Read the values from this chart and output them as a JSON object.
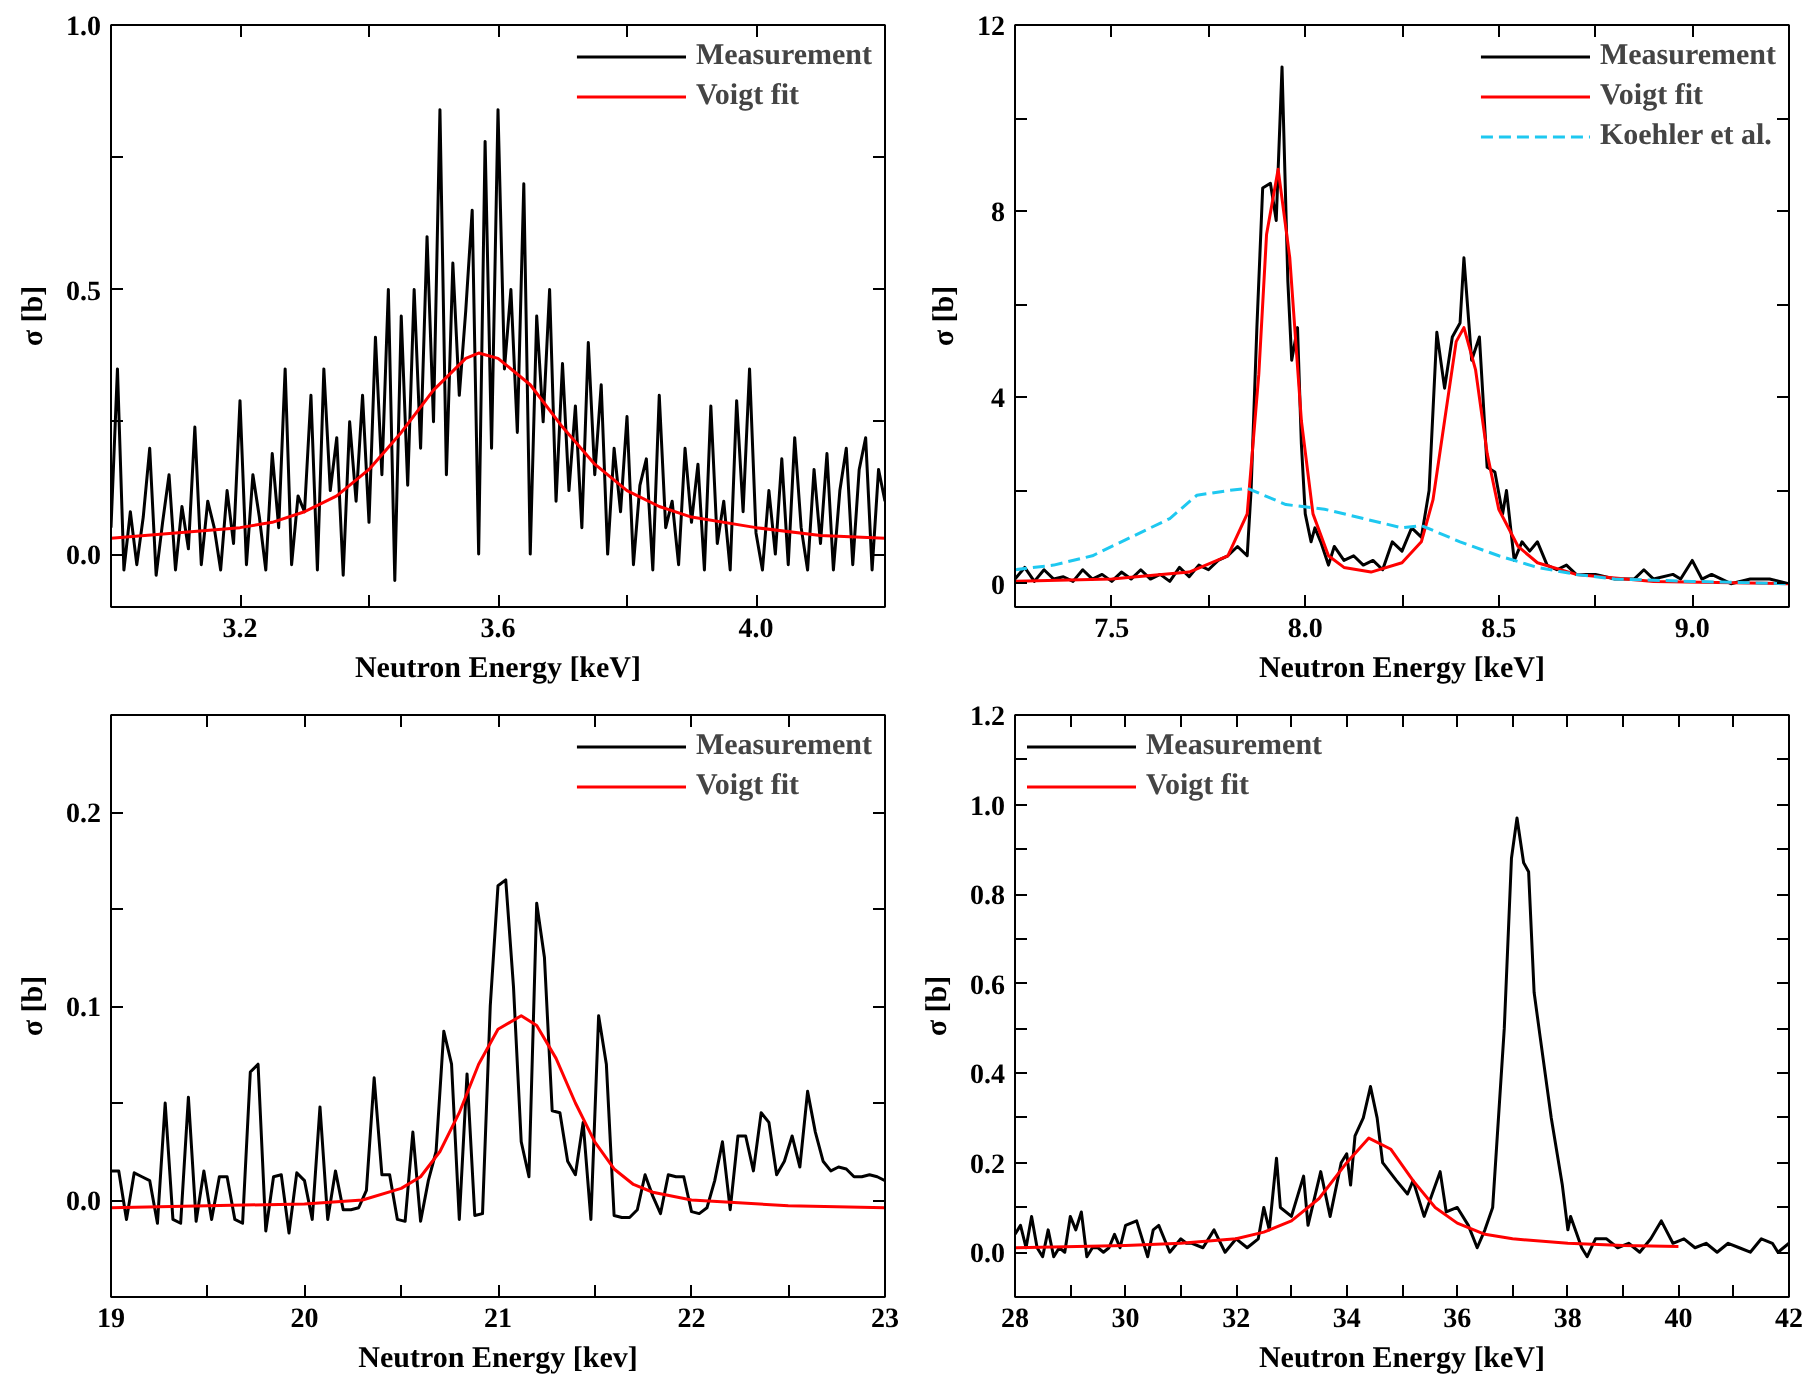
{
  "chart_data": [
    {
      "type": "line",
      "xlabel": "Neutron Energy [keV]",
      "ylabel": "σ [b]",
      "legend": "top right",
      "xlim": [
        3.0,
        4.2
      ],
      "ylim": [
        -0.1,
        1.0
      ],
      "xticks": [
        {
          "value": 3.0,
          "label": null
        },
        {
          "value": 3.2,
          "label": "3.2"
        },
        {
          "value": 3.4,
          "label": null
        },
        {
          "value": 3.6,
          "label": "3.6"
        },
        {
          "value": 3.8,
          "label": null
        },
        {
          "value": 4.0,
          "label": "4.0"
        },
        {
          "value": 4.2,
          "label": null
        }
      ],
      "yticks": [
        {
          "value": 0,
          "label": "0.0"
        },
        {
          "value": 0.25,
          "label": null
        },
        {
          "value": 0.5,
          "label": "0.5"
        },
        {
          "value": 0.75,
          "label": null
        },
        {
          "value": 1.0,
          "label": "1.0"
        }
      ],
      "series": [
        {
          "name": "Measurement",
          "color": "#000000",
          "x": [
            3.0,
            3.01,
            3.02,
            3.03,
            3.04,
            3.05,
            3.06,
            3.07,
            3.08,
            3.09,
            3.1,
            3.11,
            3.12,
            3.13,
            3.14,
            3.15,
            3.16,
            3.17,
            3.18,
            3.19,
            3.2,
            3.21,
            3.22,
            3.23,
            3.24,
            3.25,
            3.26,
            3.27,
            3.28,
            3.29,
            3.3,
            3.31,
            3.32,
            3.33,
            3.34,
            3.35,
            3.36,
            3.37,
            3.38,
            3.39,
            3.4,
            3.41,
            3.42,
            3.43,
            3.44,
            3.45,
            3.46,
            3.47,
            3.48,
            3.49,
            3.5,
            3.51,
            3.52,
            3.53,
            3.54,
            3.55,
            3.56,
            3.57,
            3.58,
            3.59,
            3.6,
            3.61,
            3.62,
            3.63,
            3.64,
            3.65,
            3.66,
            3.67,
            3.68,
            3.69,
            3.7,
            3.71,
            3.72,
            3.73,
            3.74,
            3.75,
            3.76,
            3.77,
            3.78,
            3.79,
            3.8,
            3.81,
            3.82,
            3.83,
            3.84,
            3.85,
            3.86,
            3.87,
            3.88,
            3.89,
            3.9,
            3.91,
            3.92,
            3.93,
            3.94,
            3.95,
            3.96,
            3.97,
            3.98,
            3.99,
            4.0,
            4.01,
            4.02,
            4.03,
            4.04,
            4.05,
            4.06,
            4.07,
            4.08,
            4.09,
            4.1,
            4.11,
            4.12,
            4.13,
            4.14,
            4.15,
            4.16,
            4.17,
            4.18,
            4.19,
            4.2
          ],
          "values": [
            0.05,
            0.35,
            -0.03,
            0.08,
            -0.02,
            0.07,
            0.2,
            -0.04,
            0.06,
            0.15,
            -0.03,
            0.09,
            0.01,
            0.24,
            -0.02,
            0.1,
            0.05,
            -0.03,
            0.12,
            0.02,
            0.29,
            -0.02,
            0.15,
            0.07,
            -0.03,
            0.19,
            0.05,
            0.35,
            -0.02,
            0.11,
            0.08,
            0.3,
            -0.03,
            0.35,
            0.12,
            0.22,
            -0.04,
            0.25,
            0.1,
            0.3,
            0.06,
            0.41,
            0.15,
            0.5,
            -0.05,
            0.45,
            0.13,
            0.5,
            0.2,
            0.6,
            0.25,
            0.84,
            0.15,
            0.55,
            0.3,
            0.46,
            0.65,
            0.0,
            0.78,
            0.2,
            0.84,
            0.35,
            0.5,
            0.23,
            0.7,
            0.0,
            0.45,
            0.25,
            0.5,
            0.1,
            0.36,
            0.12,
            0.28,
            0.05,
            0.4,
            0.15,
            0.32,
            0.0,
            0.2,
            0.08,
            0.26,
            -0.02,
            0.13,
            0.18,
            -0.03,
            0.3,
            0.05,
            0.1,
            -0.02,
            0.2,
            0.06,
            0.17,
            -0.03,
            0.28,
            0.02,
            0.1,
            -0.03,
            0.29,
            0.08,
            0.35,
            0.04,
            -0.03,
            0.12,
            0.0,
            0.18,
            -0.02,
            0.22,
            0.05,
            -0.03,
            0.16,
            0.02,
            0.19,
            -0.03,
            0.12,
            0.2,
            -0.02,
            0.16,
            0.22,
            -0.03,
            0.16,
            0.1
          ]
        },
        {
          "name": "Voigt fit",
          "color": "#ff0000",
          "x": [
            3.0,
            3.1,
            3.2,
            3.25,
            3.3,
            3.35,
            3.4,
            3.45,
            3.5,
            3.55,
            3.57,
            3.6,
            3.65,
            3.7,
            3.75,
            3.8,
            3.85,
            3.9,
            4.0,
            4.1,
            4.2
          ],
          "values": [
            0.03,
            0.04,
            0.05,
            0.06,
            0.08,
            0.11,
            0.16,
            0.23,
            0.31,
            0.37,
            0.38,
            0.37,
            0.32,
            0.24,
            0.17,
            0.12,
            0.09,
            0.07,
            0.05,
            0.035,
            0.03
          ]
        }
      ]
    },
    {
      "type": "line",
      "xlabel": "Neutron Energy [keV]",
      "ylabel": "σ [b]",
      "legend": "top right",
      "xlim": [
        7.25,
        9.25
      ],
      "ylim": [
        -0.5,
        12
      ],
      "xticks": [
        {
          "value": 7.25,
          "label": null
        },
        {
          "value": 7.5,
          "label": "7.5"
        },
        {
          "value": 7.75,
          "label": null
        },
        {
          "value": 8.0,
          "label": "8.0"
        },
        {
          "value": 8.25,
          "label": null
        },
        {
          "value": 8.5,
          "label": "8.5"
        },
        {
          "value": 8.75,
          "label": null
        },
        {
          "value": 9.0,
          "label": "9.0"
        }
      ],
      "yticks": [
        0,
        {
          "value": 2,
          "label": null
        },
        4,
        {
          "value": 6,
          "label": null
        },
        8,
        {
          "value": 10,
          "label": null
        },
        12
      ],
      "series": [
        {
          "name": "Measurement",
          "color": "#000000",
          "x": [
            7.25,
            7.275,
            7.3,
            7.325,
            7.35,
            7.375,
            7.4,
            7.425,
            7.45,
            7.475,
            7.5,
            7.525,
            7.55,
            7.575,
            7.6,
            7.625,
            7.65,
            7.675,
            7.7,
            7.725,
            7.75,
            7.775,
            7.8,
            7.825,
            7.85,
            7.86,
            7.875,
            7.89,
            7.91,
            7.925,
            7.94,
            7.955,
            7.965,
            7.98,
            7.99,
            8.0,
            8.015,
            8.025,
            8.04,
            8.06,
            8.075,
            8.1,
            8.125,
            8.15,
            8.175,
            8.2,
            8.225,
            8.25,
            8.275,
            8.3,
            8.32,
            8.34,
            8.36,
            8.38,
            8.4,
            8.41,
            8.43,
            8.45,
            8.47,
            8.49,
            8.51,
            8.52,
            8.54,
            8.56,
            8.58,
            8.6,
            8.625,
            8.65,
            8.675,
            8.7,
            8.75,
            8.8,
            8.85,
            8.875,
            8.9,
            8.95,
            8.97,
            9.0,
            9.025,
            9.05,
            9.1,
            9.15,
            9.2,
            9.25
          ],
          "values": [
            0.1,
            0.35,
            0.05,
            0.3,
            0.1,
            0.15,
            0.05,
            0.3,
            0.1,
            0.2,
            0.05,
            0.25,
            0.1,
            0.3,
            0.1,
            0.2,
            0.05,
            0.35,
            0.15,
            0.4,
            0.3,
            0.5,
            0.6,
            0.8,
            0.6,
            2.0,
            5.5,
            8.5,
            8.6,
            7.8,
            11.1,
            6.5,
            4.8,
            5.5,
            3.0,
            1.5,
            0.9,
            1.2,
            0.9,
            0.4,
            0.8,
            0.5,
            0.6,
            0.4,
            0.5,
            0.3,
            0.9,
            0.7,
            1.2,
            1.0,
            2.0,
            5.4,
            4.2,
            5.3,
            5.6,
            7.0,
            4.8,
            5.3,
            2.5,
            2.4,
            1.5,
            2.0,
            0.5,
            0.9,
            0.7,
            0.9,
            0.4,
            0.3,
            0.4,
            0.2,
            0.2,
            0.1,
            0.1,
            0.3,
            0.1,
            0.2,
            0.1,
            0.5,
            0.1,
            0.2,
            0.0,
            0.1,
            0.1,
            0.0
          ]
        },
        {
          "name": "Voigt fit",
          "color": "#ff0000",
          "x": [
            7.25,
            7.5,
            7.7,
            7.8,
            7.85,
            7.88,
            7.9,
            7.93,
            7.96,
            7.99,
            8.02,
            8.06,
            8.1,
            8.17,
            8.25,
            8.3,
            8.33,
            8.36,
            8.39,
            8.41,
            8.44,
            8.47,
            8.5,
            8.55,
            8.6,
            8.7,
            8.9,
            9.25
          ],
          "values": [
            0.05,
            0.1,
            0.25,
            0.6,
            1.5,
            4.5,
            7.5,
            8.9,
            7.0,
            3.5,
            1.5,
            0.6,
            0.35,
            0.25,
            0.45,
            0.9,
            1.8,
            3.5,
            5.2,
            5.5,
            4.6,
            2.8,
            1.6,
            0.8,
            0.45,
            0.2,
            0.05,
            0.0
          ]
        },
        {
          "name": "Koehler et al.",
          "color": "#1ec8f0",
          "line_style": "dashed",
          "x": [
            7.25,
            7.35,
            7.45,
            7.55,
            7.65,
            7.72,
            7.8,
            7.85,
            7.95,
            8.05,
            8.15,
            8.25,
            8.3,
            8.4,
            8.5,
            8.6,
            8.7,
            8.8,
            9.0,
            9.25
          ],
          "values": [
            0.3,
            0.4,
            0.6,
            1.0,
            1.4,
            1.9,
            2.0,
            2.05,
            1.7,
            1.6,
            1.4,
            1.2,
            1.25,
            0.9,
            0.6,
            0.35,
            0.2,
            0.1,
            0.05,
            0.0
          ]
        }
      ]
    },
    {
      "type": "line",
      "xlabel": "Neutron Energy [kev]",
      "ylabel": "σ [b]",
      "legend": "top right",
      "xlim": [
        19,
        23
      ],
      "ylim": [
        -0.05,
        0.25
      ],
      "xticks": [
        19,
        {
          "value": 19.5,
          "label": null
        },
        20,
        {
          "value": 20.5,
          "label": null
        },
        21,
        {
          "value": 21.5,
          "label": null
        },
        22,
        {
          "value": 22.5,
          "label": null
        },
        23
      ],
      "yticks": [
        {
          "value": 0,
          "label": "0.0"
        },
        {
          "value": 0.05,
          "label": null
        },
        0.1,
        {
          "value": 0.15,
          "label": null
        },
        0.2
      ],
      "series": [
        {
          "name": "Measurement",
          "color": "#000000",
          "x": [
            19.0,
            19.04,
            19.08,
            19.12,
            19.16,
            19.2,
            19.24,
            19.28,
            19.32,
            19.36,
            19.4,
            19.44,
            19.48,
            19.52,
            19.56,
            19.6,
            19.64,
            19.68,
            19.72,
            19.76,
            19.8,
            19.84,
            19.88,
            19.92,
            19.96,
            20.0,
            20.04,
            20.08,
            20.12,
            20.16,
            20.2,
            20.24,
            20.28,
            20.32,
            20.36,
            20.4,
            20.44,
            20.48,
            20.52,
            20.56,
            20.6,
            20.64,
            20.68,
            20.72,
            20.76,
            20.8,
            20.84,
            20.88,
            20.92,
            20.96,
            21.0,
            21.04,
            21.08,
            21.12,
            21.16,
            21.2,
            21.24,
            21.28,
            21.32,
            21.36,
            21.4,
            21.44,
            21.48,
            21.52,
            21.56,
            21.6,
            21.64,
            21.68,
            21.72,
            21.76,
            21.8,
            21.84,
            21.88,
            21.92,
            21.96,
            22.0,
            22.04,
            22.08,
            22.12,
            22.16,
            22.2,
            22.24,
            22.28,
            22.32,
            22.36,
            22.4,
            22.44,
            22.48,
            22.52,
            22.56,
            22.6,
            22.64,
            22.68,
            22.72,
            22.76,
            22.8,
            22.84,
            22.88,
            22.92,
            22.96,
            23.0
          ],
          "values": [
            0.015,
            0.015,
            -0.01,
            0.014,
            0.012,
            0.01,
            -0.012,
            0.05,
            -0.01,
            -0.012,
            0.053,
            -0.011,
            0.015,
            -0.01,
            0.012,
            0.012,
            -0.01,
            -0.012,
            0.066,
            0.07,
            -0.016,
            0.012,
            0.013,
            -0.017,
            0.014,
            0.01,
            -0.01,
            0.048,
            -0.01,
            0.015,
            -0.005,
            -0.005,
            -0.004,
            0.005,
            0.063,
            0.013,
            0.013,
            -0.01,
            -0.011,
            0.035,
            -0.011,
            0.01,
            0.025,
            0.087,
            0.07,
            -0.01,
            0.065,
            -0.008,
            -0.007,
            0.1,
            0.162,
            0.165,
            0.11,
            0.03,
            0.012,
            0.153,
            0.125,
            0.046,
            0.045,
            0.02,
            0.013,
            0.04,
            -0.01,
            0.095,
            0.07,
            -0.008,
            -0.009,
            -0.009,
            -0.005,
            0.013,
            0.002,
            -0.007,
            0.013,
            0.012,
            0.012,
            -0.006,
            -0.007,
            -0.004,
            0.01,
            0.03,
            -0.005,
            0.033,
            0.033,
            0.015,
            0.045,
            0.04,
            0.013,
            0.02,
            0.033,
            0.017,
            0.056,
            0.035,
            0.02,
            0.015,
            0.017,
            0.016,
            0.012,
            0.012,
            0.013,
            0.012,
            0.01
          ]
        },
        {
          "name": "Voigt fit",
          "color": "#ff0000",
          "x": [
            19,
            19.5,
            20,
            20.3,
            20.5,
            20.6,
            20.7,
            20.8,
            20.9,
            21.0,
            21.12,
            21.2,
            21.3,
            21.4,
            21.5,
            21.6,
            21.7,
            21.8,
            22,
            22.5,
            23
          ],
          "values": [
            -0.004,
            -0.003,
            -0.002,
            0.0,
            0.006,
            0.012,
            0.025,
            0.045,
            0.07,
            0.088,
            0.095,
            0.09,
            0.073,
            0.05,
            0.03,
            0.016,
            0.008,
            0.004,
            0.0,
            -0.003,
            -0.004
          ]
        }
      ]
    },
    {
      "type": "line",
      "xlabel": "Neutron Energy [keV]",
      "ylabel": "σ [b]",
      "legend": "top left",
      "xlim": [
        28,
        42
      ],
      "ylim": [
        -0.1,
        1.2
      ],
      "xticks": [
        28,
        {
          "value": 29,
          "label": null
        },
        30,
        {
          "value": 31,
          "label": null
        },
        32,
        {
          "value": 33,
          "label": null
        },
        34,
        {
          "value": 35,
          "label": null
        },
        36,
        {
          "value": 37,
          "label": null
        },
        38,
        {
          "value": 39,
          "label": null
        },
        40,
        {
          "value": 41,
          "label": null
        },
        42
      ],
      "yticks": [
        {
          "value": 0,
          "label": "0.0"
        },
        {
          "value": 0.1,
          "label": null
        },
        0.2,
        {
          "value": 0.3,
          "label": null
        },
        0.4,
        {
          "value": 0.5,
          "label": null
        },
        0.6,
        {
          "value": 0.7,
          "label": null
        },
        0.8,
        {
          "value": 0.9,
          "label": null
        },
        {
          "value": 1.0,
          "label": "1.0"
        },
        {
          "value": 1.1,
          "label": null
        },
        1.2
      ],
      "series": [
        {
          "name": "Measurement",
          "color": "#000000",
          "x": [
            28.0,
            28.1,
            28.2,
            28.3,
            28.4,
            28.5,
            28.6,
            28.7,
            28.8,
            28.9,
            29.0,
            29.1,
            29.2,
            29.3,
            29.4,
            29.5,
            29.6,
            29.7,
            29.8,
            29.9,
            30.0,
            30.2,
            30.4,
            30.5,
            30.6,
            30.8,
            31.0,
            31.1,
            31.2,
            31.4,
            31.6,
            31.8,
            32.0,
            32.2,
            32.4,
            32.5,
            32.6,
            32.73,
            32.8,
            33.0,
            33.22,
            33.3,
            33.53,
            33.7,
            33.9,
            34.0,
            34.07,
            34.15,
            34.3,
            34.43,
            34.55,
            34.65,
            34.9,
            35.1,
            35.2,
            35.4,
            35.69,
            35.8,
            36.0,
            36.2,
            36.36,
            36.5,
            36.64,
            36.85,
            36.98,
            37.08,
            37.2,
            37.29,
            37.39,
            37.5,
            37.7,
            37.9,
            38.0,
            38.05,
            38.25,
            38.35,
            38.5,
            38.7,
            38.9,
            39.1,
            39.3,
            39.5,
            39.69,
            39.9,
            40.1,
            40.3,
            40.5,
            40.7,
            40.9,
            41.1,
            41.3,
            41.5,
            41.7,
            41.8,
            42.0
          ],
          "values": [
            0.04,
            0.06,
            0.01,
            0.08,
            0.01,
            -0.01,
            0.05,
            -0.01,
            0.01,
            0.0,
            0.08,
            0.05,
            0.09,
            -0.01,
            0.01,
            0.01,
            0.0,
            0.01,
            0.04,
            0.01,
            0.06,
            0.07,
            -0.01,
            0.05,
            0.06,
            0.0,
            0.03,
            0.02,
            0.02,
            0.01,
            0.05,
            0.0,
            0.03,
            0.01,
            0.03,
            0.1,
            0.05,
            0.21,
            0.1,
            0.08,
            0.17,
            0.06,
            0.18,
            0.08,
            0.2,
            0.22,
            0.15,
            0.26,
            0.3,
            0.37,
            0.3,
            0.2,
            0.16,
            0.13,
            0.16,
            0.08,
            0.18,
            0.09,
            0.1,
            0.06,
            0.01,
            0.05,
            0.1,
            0.5,
            0.88,
            0.97,
            0.87,
            0.85,
            0.58,
            0.48,
            0.3,
            0.15,
            0.05,
            0.08,
            0.01,
            -0.01,
            0.03,
            0.03,
            0.01,
            0.02,
            0.0,
            0.03,
            0.07,
            0.02,
            0.03,
            0.01,
            0.02,
            0.0,
            0.02,
            0.01,
            0.0,
            0.03,
            0.02,
            0.0,
            0.02
          ]
        },
        {
          "name": "Voigt fit",
          "color": "#ff0000",
          "x": [
            28,
            30,
            31,
            32,
            32.5,
            33,
            33.5,
            34,
            34.4,
            34.8,
            35.2,
            35.6,
            36,
            36.5,
            37,
            38,
            39,
            40
          ],
          "values": [
            0.01,
            0.015,
            0.02,
            0.03,
            0.045,
            0.07,
            0.12,
            0.2,
            0.255,
            0.23,
            0.16,
            0.1,
            0.065,
            0.04,
            0.03,
            0.02,
            0.015,
            0.013
          ]
        }
      ]
    }
  ]
}
